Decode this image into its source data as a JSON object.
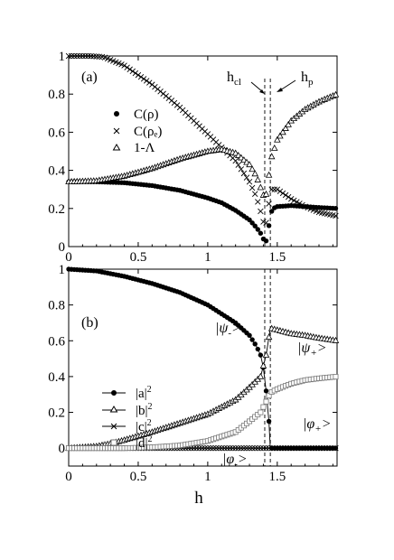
{
  "figure": {
    "xlabel": "h",
    "x_ticks": [
      "0",
      "0.5",
      "1",
      "1.5"
    ],
    "critical_lines": {
      "h_cl": 1.41,
      "h_p": 1.45
    }
  },
  "chart_data": [
    {
      "type": "scatter",
      "panel_label": "(a)",
      "xlabel": "h",
      "ylabel": "",
      "xlim": [
        0,
        1.93
      ],
      "ylim": [
        0,
        1
      ],
      "x_ticks": [
        0,
        0.5,
        1,
        1.5
      ],
      "y_ticks": [
        0,
        0.2,
        0.4,
        0.6,
        0.8,
        1
      ],
      "y_tick_labels": [
        "0",
        "0.2",
        "0.4",
        "0.6",
        "0.8",
        "1"
      ],
      "legend": [
        {
          "label": "C(ρ)",
          "marker": "filled-circle"
        },
        {
          "label": "C(ρₑ)",
          "marker": "cross"
        },
        {
          "label": "1-Λ",
          "marker": "open-triangle"
        }
      ],
      "annotations": [
        {
          "text": "h_cl",
          "main": "h",
          "sub": "cl",
          "points_to": 1.41
        },
        {
          "text": "h_p",
          "main": "h",
          "sub": "p",
          "points_to": 1.45
        }
      ],
      "series": [
        {
          "name": "C(ρ)",
          "marker": "filled-circle",
          "points": [
            [
              0,
              0.34
            ],
            [
              0.2,
              0.34
            ],
            [
              0.4,
              0.335
            ],
            [
              0.6,
              0.32
            ],
            [
              0.8,
              0.295
            ],
            [
              1.0,
              0.255
            ],
            [
              1.1,
              0.23
            ],
            [
              1.2,
              0.19
            ],
            [
              1.3,
              0.14
            ],
            [
              1.35,
              0.1
            ],
            [
              1.38,
              0.07
            ],
            [
              1.4,
              0.04
            ],
            [
              1.41,
              0.02
            ],
            [
              1.42,
              0.03
            ],
            [
              1.43,
              0.06
            ],
            [
              1.44,
              0.11
            ],
            [
              1.45,
              0.17
            ],
            [
              1.47,
              0.2
            ],
            [
              1.5,
              0.21
            ],
            [
              1.6,
              0.215
            ],
            [
              1.7,
              0.21
            ],
            [
              1.8,
              0.205
            ],
            [
              1.93,
              0.2
            ]
          ]
        },
        {
          "name": "C(ρₑ)",
          "marker": "cross",
          "points": [
            [
              0,
              1.0
            ],
            [
              0.15,
              1.0
            ],
            [
              0.25,
              0.995
            ],
            [
              0.4,
              0.95
            ],
            [
              0.6,
              0.85
            ],
            [
              0.8,
              0.73
            ],
            [
              1.0,
              0.59
            ],
            [
              1.1,
              0.52
            ],
            [
              1.2,
              0.45
            ],
            [
              1.3,
              0.34
            ],
            [
              1.35,
              0.26
            ],
            [
              1.39,
              0.16
            ],
            [
              1.41,
              0.1
            ],
            [
              1.43,
              0.15
            ],
            [
              1.45,
              0.3
            ],
            [
              1.5,
              0.3
            ],
            [
              1.6,
              0.25
            ],
            [
              1.7,
              0.21
            ],
            [
              1.8,
              0.18
            ],
            [
              1.93,
              0.16
            ]
          ]
        },
        {
          "name": "1-Λ",
          "marker": "open-triangle",
          "points": [
            [
              0,
              0.34
            ],
            [
              0.2,
              0.345
            ],
            [
              0.4,
              0.37
            ],
            [
              0.6,
              0.41
            ],
            [
              0.8,
              0.46
            ],
            [
              1.0,
              0.5
            ],
            [
              1.1,
              0.51
            ],
            [
              1.2,
              0.49
            ],
            [
              1.3,
              0.43
            ],
            [
              1.35,
              0.37
            ],
            [
              1.38,
              0.31
            ],
            [
              1.41,
              0.25
            ],
            [
              1.43,
              0.3
            ],
            [
              1.45,
              0.45
            ],
            [
              1.5,
              0.56
            ],
            [
              1.6,
              0.66
            ],
            [
              1.7,
              0.72
            ],
            [
              1.8,
              0.76
            ],
            [
              1.93,
              0.8
            ]
          ]
        }
      ]
    },
    {
      "type": "line",
      "panel_label": "(b)",
      "xlabel": "h",
      "ylabel": "",
      "xlim": [
        0,
        1.93
      ],
      "ylim": [
        -0.1,
        1
      ],
      "x_ticks": [
        0,
        0.5,
        1,
        1.5
      ],
      "x_tick_labels": [
        "0",
        "0.5",
        "1",
        "1.5"
      ],
      "y_ticks": [
        0,
        0.2,
        0.4,
        0.6,
        0.8,
        1
      ],
      "y_tick_labels": [
        "0",
        "0.2",
        "0.4",
        "0.6",
        "0.8",
        "1"
      ],
      "legend": [
        {
          "label": "|a|²",
          "main": "|a|",
          "sup": "2",
          "marker": "filled-circle"
        },
        {
          "label": "|b|²",
          "main": "|b|",
          "sup": "2",
          "marker": "open-triangle"
        },
        {
          "label": "|c|²",
          "main": "|c|",
          "sup": "2",
          "marker": "cross"
        },
        {
          "label": "|d|²",
          "main": "|d|",
          "sup": "2",
          "marker": "open-square"
        }
      ],
      "annotations": [
        {
          "text": "|ψ₋>",
          "main": "|ψ",
          "sub": "-",
          "tail": ">"
        },
        {
          "text": "|ψ₊>",
          "main": "|ψ",
          "sub": "+",
          "tail": ">"
        },
        {
          "text": "|φ₊>",
          "main": "|φ",
          "sub": "+",
          "tail": ">"
        },
        {
          "text": "|φ₋>",
          "main": "|φ",
          "sub": "-",
          "tail": ">"
        }
      ],
      "series": [
        {
          "name": "|a|²",
          "marker": "filled-circle",
          "points": [
            [
              0,
              1.0
            ],
            [
              0.2,
              0.99
            ],
            [
              0.4,
              0.96
            ],
            [
              0.6,
              0.92
            ],
            [
              0.8,
              0.87
            ],
            [
              1.0,
              0.8
            ],
            [
              1.2,
              0.7
            ],
            [
              1.3,
              0.63
            ],
            [
              1.35,
              0.57
            ],
            [
              1.38,
              0.52
            ],
            [
              1.4,
              0.45
            ],
            [
              1.42,
              0.32
            ],
            [
              1.44,
              0.15
            ],
            [
              1.45,
              0.0
            ],
            [
              1.6,
              0.0
            ],
            [
              1.93,
              0.0
            ]
          ]
        },
        {
          "name": "|b|²",
          "marker": "open-triangle",
          "points": [
            [
              0,
              0.0
            ],
            [
              0.1,
              0.005
            ],
            [
              0.2,
              0.01
            ],
            [
              0.3,
              0.025
            ],
            [
              0.4,
              0.045
            ],
            [
              0.6,
              0.09
            ],
            [
              0.8,
              0.14
            ],
            [
              1.0,
              0.19
            ],
            [
              1.2,
              0.27
            ],
            [
              1.3,
              0.34
            ],
            [
              1.38,
              0.4
            ],
            [
              1.42,
              0.52
            ],
            [
              1.45,
              0.67
            ],
            [
              1.5,
              0.66
            ],
            [
              1.6,
              0.64
            ],
            [
              1.7,
              0.63
            ],
            [
              1.8,
              0.615
            ],
            [
              1.93,
              0.6
            ]
          ]
        },
        {
          "name": "|c|²",
          "marker": "cross",
          "points": [
            [
              0,
              0.0
            ],
            [
              0.5,
              0.0
            ],
            [
              1.0,
              0.0
            ],
            [
              1.45,
              0.0
            ],
            [
              1.7,
              0.0
            ],
            [
              1.93,
              0.0
            ]
          ]
        },
        {
          "name": "|d|²",
          "marker": "open-square",
          "points": [
            [
              0,
              0.0
            ],
            [
              0.4,
              0.0
            ],
            [
              0.6,
              0.005
            ],
            [
              0.8,
              0.015
            ],
            [
              1.0,
              0.04
            ],
            [
              1.2,
              0.09
            ],
            [
              1.3,
              0.15
            ],
            [
              1.38,
              0.2
            ],
            [
              1.42,
              0.26
            ],
            [
              1.45,
              0.31
            ],
            [
              1.5,
              0.33
            ],
            [
              1.6,
              0.36
            ],
            [
              1.7,
              0.38
            ],
            [
              1.8,
              0.39
            ],
            [
              1.93,
              0.4
            ]
          ]
        }
      ]
    }
  ]
}
